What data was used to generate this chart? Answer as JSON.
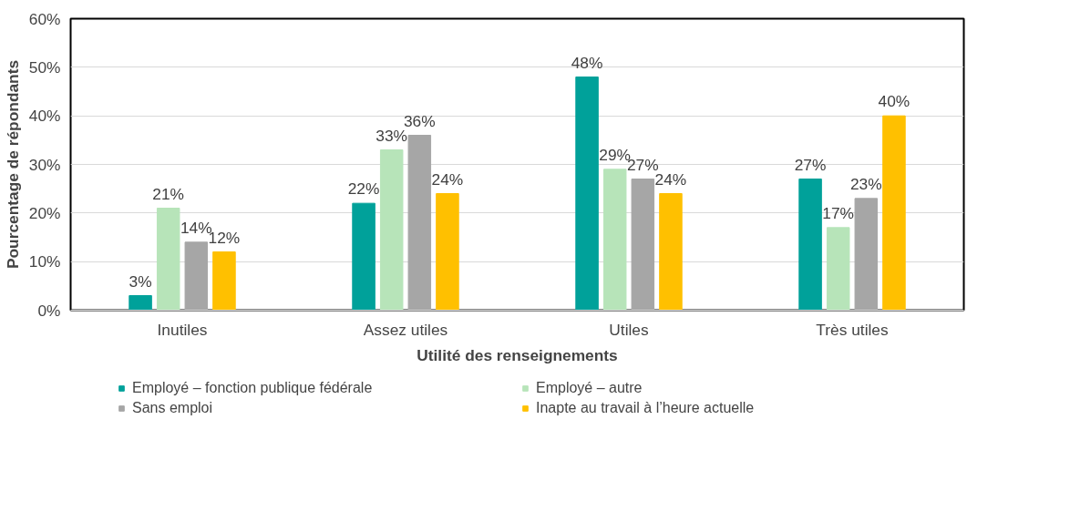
{
  "chart_data": {
    "type": "bar",
    "xlabel": "Utilité des renseignements",
    "ylabel": "Pourcentage de répondants",
    "categories": [
      "Inutiles",
      "Assez utiles",
      "Utiles",
      "Très utiles"
    ],
    "series": [
      {
        "name": "Employé – fonction publique fédérale",
        "color": "#00a19a",
        "values": [
          3,
          22,
          48,
          27
        ],
        "value_labels": [
          "3%",
          "22%",
          "48%",
          "27%"
        ]
      },
      {
        "name": "Employé – autre",
        "color": "#b7e4b9",
        "values": [
          21,
          33,
          29,
          17
        ],
        "value_labels": [
          "21%",
          "33%",
          "29%",
          "17%"
        ]
      },
      {
        "name": "Sans emploi",
        "color": "#a6a6a6",
        "values": [
          14,
          36,
          27,
          23
        ],
        "value_labels": [
          "14%",
          "36%",
          "27%",
          "23%"
        ]
      },
      {
        "name": "Inapte au travail à l’heure actuelle",
        "color": "#ffc000",
        "values": [
          12,
          24,
          24,
          40
        ],
        "value_labels": [
          "12%",
          "24%",
          "24%",
          "40%"
        ]
      }
    ],
    "ylim": [
      0,
      60
    ],
    "yticks": [
      {
        "value": 0,
        "label": "0%"
      },
      {
        "value": 10,
        "label": "10%"
      },
      {
        "value": 20,
        "label": "20%"
      },
      {
        "value": 30,
        "label": "30%"
      },
      {
        "value": 40,
        "label": "40%"
      },
      {
        "value": 50,
        "label": "50%"
      },
      {
        "value": 60,
        "label": "60%"
      }
    ],
    "grid": "y",
    "legend": "bottom"
  }
}
